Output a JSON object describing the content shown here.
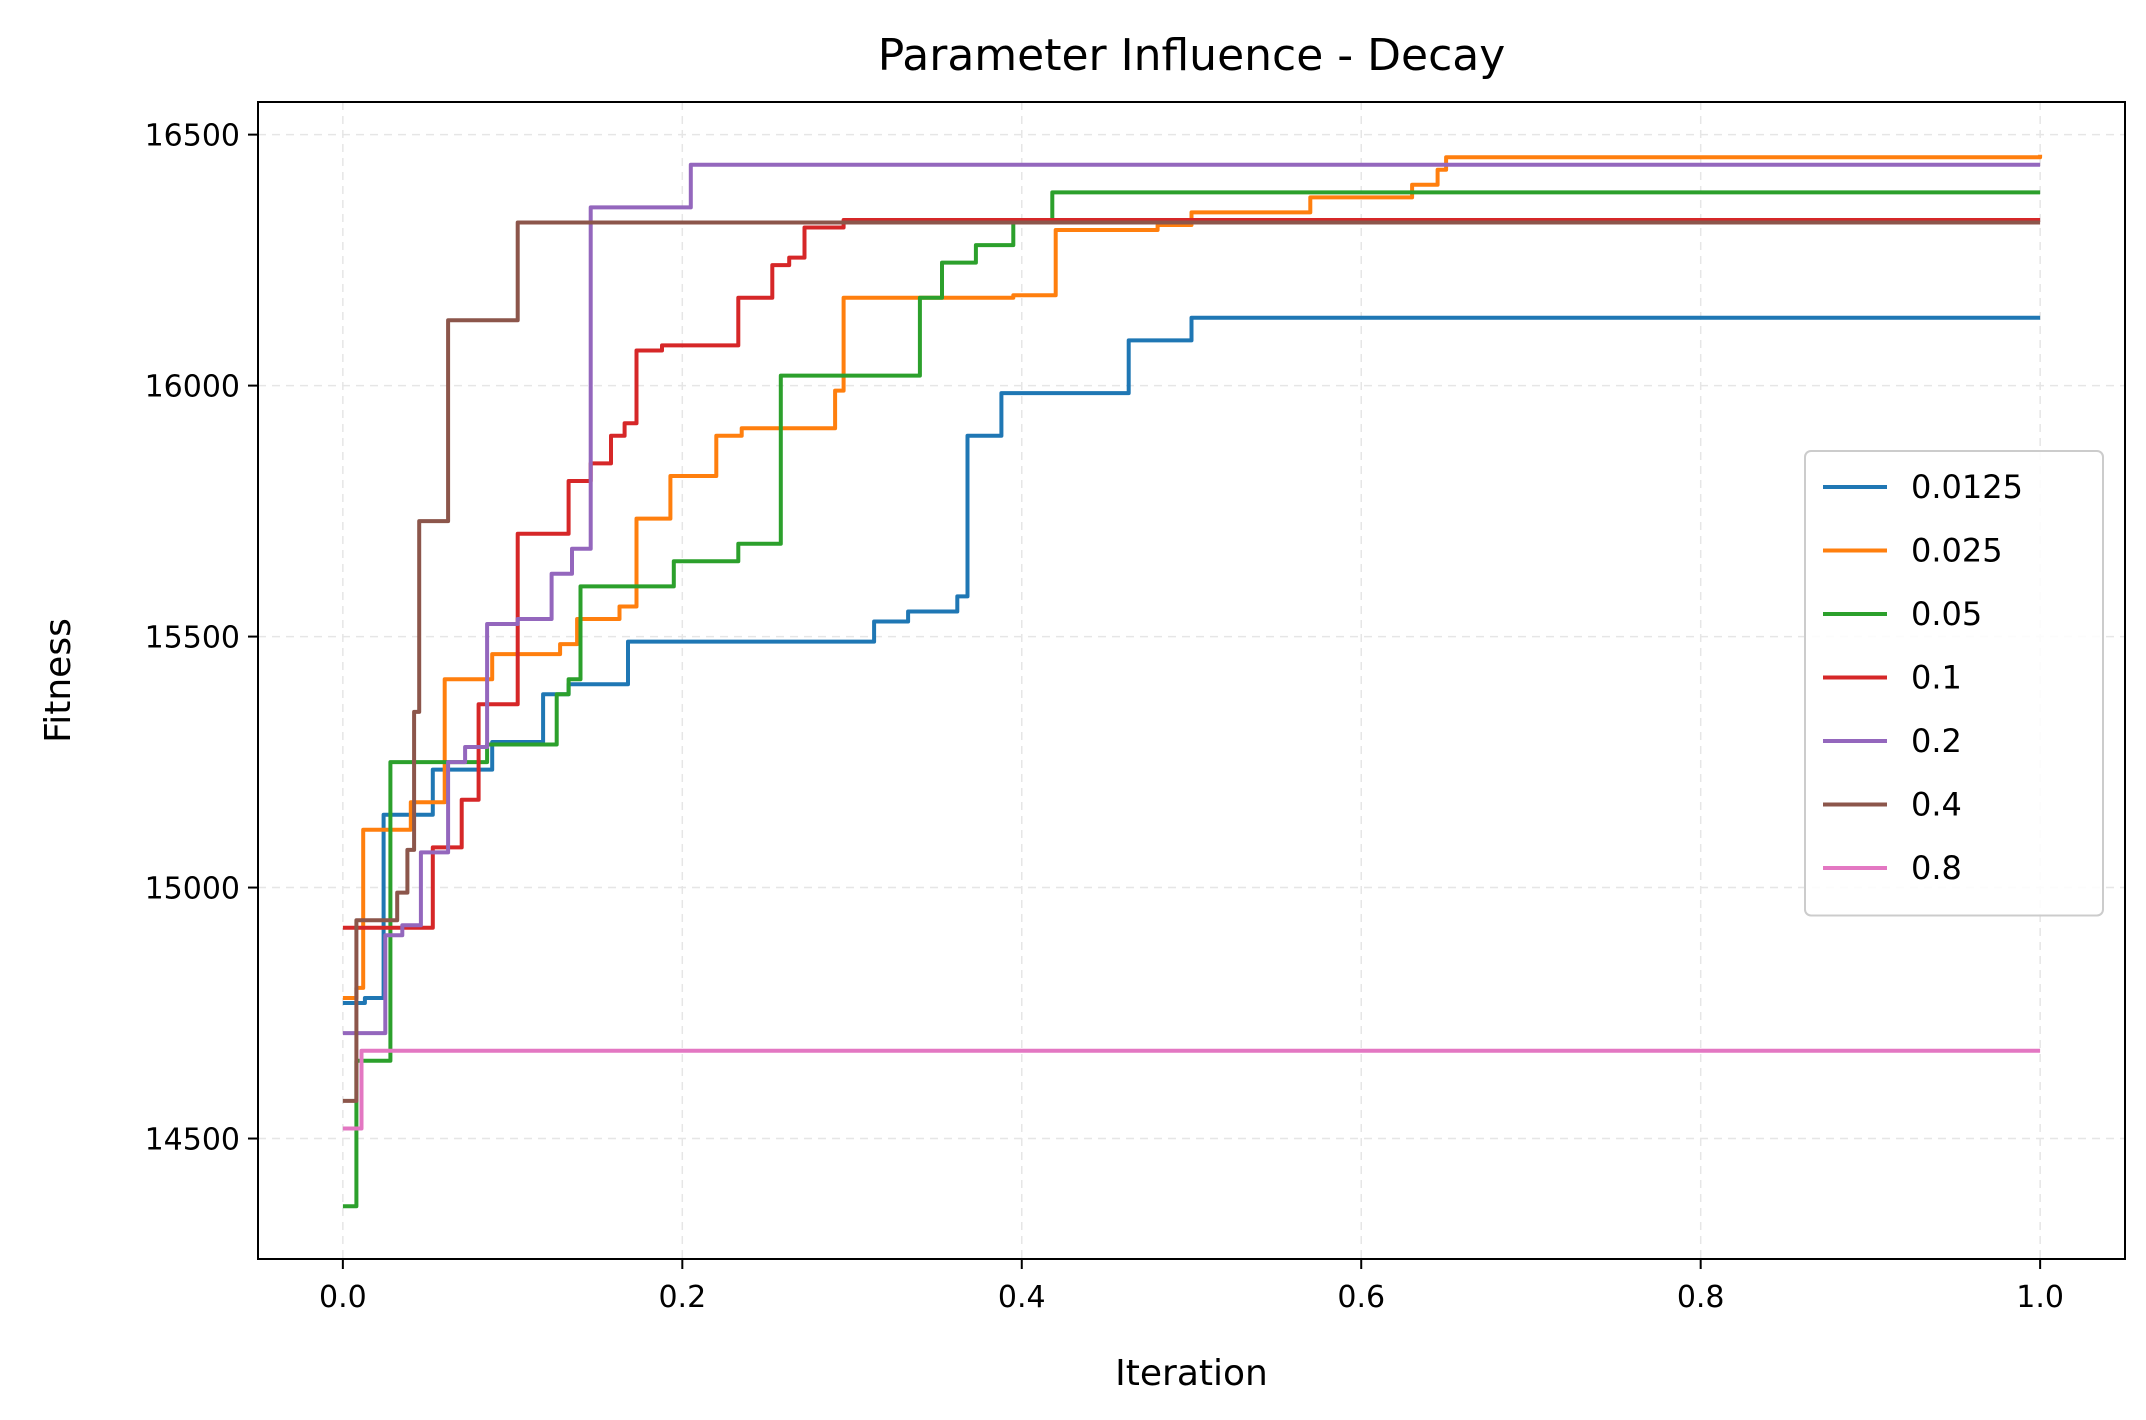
{
  "chart_data": {
    "type": "line",
    "title": "Parameter Influence - Decay",
    "xlabel": "Iteration",
    "ylabel": "Fitness",
    "xlim": [
      -0.05,
      1.05
    ],
    "ylim": [
      14260,
      16565
    ],
    "xticks": [
      0.0,
      0.2,
      0.4,
      0.6,
      0.8,
      1.0
    ],
    "xtick_labels": [
      "0.0",
      "0.2",
      "0.4",
      "0.6",
      "0.8",
      "1.0"
    ],
    "yticks": [
      14500,
      15000,
      15500,
      16000,
      16500
    ],
    "ytick_labels": [
      "14500",
      "15000",
      "15500",
      "16000",
      "16500"
    ],
    "grid": true,
    "legend_position": "center-right",
    "series": [
      {
        "name": "0.0125",
        "color": "#1f77b4",
        "x": [
          0.0,
          0.006,
          0.013,
          0.022,
          0.024,
          0.05,
          0.053,
          0.085,
          0.088,
          0.115,
          0.118,
          0.13,
          0.133,
          0.165,
          0.168,
          0.31,
          0.313,
          0.33,
          0.333,
          0.36,
          0.362,
          0.365,
          0.368,
          0.385,
          0.388,
          0.46,
          0.463,
          0.497,
          0.5,
          1.0
        ],
        "y": [
          14770,
          14770,
          14780,
          14780,
          15145,
          15145,
          15235,
          15235,
          15290,
          15290,
          15385,
          15385,
          15405,
          15405,
          15490,
          15490,
          15530,
          15530,
          15550,
          15550,
          15580,
          15580,
          15900,
          15900,
          15985,
          15985,
          16090,
          16090,
          16135,
          16135
        ]
      },
      {
        "name": "0.025",
        "color": "#ff7f0e",
        "x": [
          0.0,
          0.008,
          0.012,
          0.036,
          0.04,
          0.058,
          0.06,
          0.085,
          0.088,
          0.125,
          0.128,
          0.135,
          0.138,
          0.16,
          0.163,
          0.17,
          0.173,
          0.19,
          0.193,
          0.218,
          0.22,
          0.232,
          0.235,
          0.29,
          0.295,
          0.39,
          0.395,
          0.415,
          0.42,
          0.48,
          0.5,
          0.56,
          0.57,
          0.62,
          0.63,
          0.645,
          0.65,
          1.0
        ],
        "y": [
          14780,
          14800,
          15115,
          15115,
          15170,
          15170,
          15415,
          15415,
          15465,
          15465,
          15485,
          15485,
          15535,
          15535,
          15560,
          15560,
          15735,
          15735,
          15820,
          15820,
          15900,
          15900,
          15915,
          15990,
          16175,
          16175,
          16180,
          16180,
          16310,
          16320,
          16345,
          16345,
          16375,
          16375,
          16400,
          16430,
          16455,
          16460
        ]
      },
      {
        "name": "0.05",
        "color": "#2ca02c",
        "x": [
          0.0,
          0.005,
          0.008,
          0.025,
          0.028,
          0.082,
          0.085,
          0.123,
          0.126,
          0.13,
          0.133,
          0.137,
          0.14,
          0.192,
          0.195,
          0.23,
          0.233,
          0.255,
          0.258,
          0.337,
          0.34,
          0.35,
          0.353,
          0.37,
          0.373,
          0.39,
          0.395,
          0.413,
          0.418,
          1.0
        ],
        "y": [
          14365,
          14365,
          14655,
          14655,
          15250,
          15250,
          15285,
          15285,
          15385,
          15385,
          15415,
          15415,
          15600,
          15600,
          15650,
          15650,
          15685,
          15685,
          16020,
          16020,
          16175,
          16175,
          16245,
          16245,
          16280,
          16280,
          16330,
          16330,
          16385,
          16385
        ]
      },
      {
        "name": "0.1",
        "color": "#d62728",
        "x": [
          0.0,
          0.05,
          0.053,
          0.067,
          0.07,
          0.078,
          0.08,
          0.1,
          0.103,
          0.13,
          0.133,
          0.143,
          0.146,
          0.155,
          0.158,
          0.163,
          0.166,
          0.17,
          0.173,
          0.185,
          0.188,
          0.23,
          0.233,
          0.25,
          0.253,
          0.26,
          0.263,
          0.268,
          0.272,
          0.29,
          0.295,
          1.0
        ],
        "y": [
          14920,
          14920,
          15080,
          15080,
          15175,
          15175,
          15365,
          15365,
          15705,
          15705,
          15810,
          15810,
          15845,
          15845,
          15900,
          15900,
          15925,
          15925,
          16070,
          16070,
          16080,
          16080,
          16175,
          16175,
          16240,
          16240,
          16255,
          16255,
          16315,
          16315,
          16330,
          16330
        ]
      },
      {
        "name": "0.2",
        "color": "#9467bd",
        "x": [
          0.0,
          0.02,
          0.025,
          0.032,
          0.035,
          0.043,
          0.046,
          0.058,
          0.062,
          0.068,
          0.072,
          0.082,
          0.085,
          0.1,
          0.103,
          0.12,
          0.123,
          0.132,
          0.135,
          0.143,
          0.146,
          0.2,
          0.205,
          1.0
        ],
        "y": [
          14710,
          14710,
          14905,
          14905,
          14925,
          14925,
          15070,
          15070,
          15250,
          15250,
          15280,
          15280,
          15525,
          15525,
          15535,
          15535,
          15625,
          15625,
          15675,
          15675,
          16355,
          16355,
          16440,
          16440
        ]
      },
      {
        "name": "0.4",
        "color": "#8c564b",
        "x": [
          0.0,
          0.006,
          0.008,
          0.025,
          0.032,
          0.038,
          0.042,
          0.045,
          0.048,
          0.058,
          0.062,
          0.065,
          0.068,
          0.098,
          0.103,
          1.0
        ],
        "y": [
          14575,
          14575,
          14935,
          14935,
          14990,
          15075,
          15350,
          15730,
          15730,
          15730,
          16130,
          16130,
          16130,
          16130,
          16325,
          16325
        ]
      },
      {
        "name": "0.8",
        "color": "#e377c2",
        "x": [
          0.0,
          0.006,
          0.011,
          1.0
        ],
        "y": [
          14520,
          14520,
          14675,
          14675
        ]
      }
    ]
  }
}
